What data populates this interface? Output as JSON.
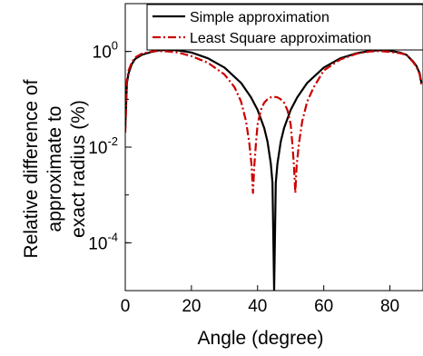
{
  "chart_data": {
    "type": "line",
    "xlabel": "Angle (degree)",
    "ylabel_lines": [
      "Relative difference of",
      "approximate to",
      "exact radius (%)"
    ],
    "xlim": [
      0,
      90
    ],
    "ylim": [
      1e-05,
      10
    ],
    "yscale": "log",
    "x_ticks": [
      0,
      20,
      40,
      60,
      80
    ],
    "x_tick_labels": [
      "0",
      "20",
      "40",
      "60",
      "80"
    ],
    "y_ticks": [
      0.0001,
      0.01,
      1
    ],
    "y_tick_labels": [
      {
        "base": "10",
        "exp": "-4"
      },
      {
        "base": "10",
        "exp": "-2"
      },
      {
        "base": "10",
        "exp": "0"
      }
    ],
    "grid": false,
    "legend": {
      "placement": "top-right",
      "entries": [
        {
          "label": "Simple approximation",
          "color": "#000000",
          "style": "solid"
        },
        {
          "label": "Least Square approximation",
          "color": "#cc0000",
          "style": "dashdot"
        }
      ]
    },
    "series": [
      {
        "name": "Simple approximation",
        "color": "#000000",
        "style": "solid",
        "x": [
          0,
          0.5,
          1,
          2,
          3,
          5,
          8,
          10,
          13,
          16,
          20,
          25,
          30,
          35,
          38,
          40,
          42,
          43,
          44,
          44.5,
          45,
          45.5,
          46,
          47,
          48,
          50,
          52,
          55,
          60,
          65,
          70,
          74,
          77,
          80,
          83,
          85,
          87,
          88,
          89,
          89.5
        ],
        "y": [
          0.025,
          0.22,
          0.35,
          0.55,
          0.7,
          0.85,
          0.98,
          1.05,
          1.08,
          1.05,
          0.95,
          0.72,
          0.46,
          0.22,
          0.11,
          0.06,
          0.025,
          0.013,
          0.0045,
          0.0018,
          1e-05,
          0.0018,
          0.0045,
          0.013,
          0.025,
          0.06,
          0.11,
          0.22,
          0.46,
          0.72,
          0.92,
          1.03,
          1.06,
          1.03,
          0.95,
          0.85,
          0.62,
          0.5,
          0.35,
          0.22
        ]
      },
      {
        "name": "Least Square approximation",
        "color": "#cc0000",
        "style": "dashdot",
        "x": [
          0,
          0.5,
          1,
          2,
          3,
          5,
          8,
          10,
          13,
          16,
          20,
          25,
          30,
          33,
          35,
          36.5,
          37.5,
          38.2,
          38.6,
          39,
          39.5,
          40,
          41,
          42,
          43,
          44,
          45,
          46,
          47,
          48,
          49,
          50,
          50.5,
          51,
          51.4,
          51.8,
          52.5,
          53.5,
          55,
          57,
          60,
          65,
          70,
          74,
          77,
          80,
          83,
          85,
          87,
          88,
          89,
          89.5
        ],
        "y": [
          0.02,
          0.25,
          0.4,
          0.6,
          0.75,
          0.9,
          1.0,
          1.02,
          1.0,
          0.95,
          0.8,
          0.58,
          0.33,
          0.18,
          0.09,
          0.035,
          0.012,
          0.004,
          0.0011,
          0.004,
          0.012,
          0.03,
          0.06,
          0.085,
          0.1,
          0.11,
          0.112,
          0.11,
          0.1,
          0.085,
          0.06,
          0.03,
          0.012,
          0.004,
          0.0011,
          0.004,
          0.012,
          0.035,
          0.09,
          0.18,
          0.4,
          0.68,
          0.9,
          1.0,
          1.02,
          0.98,
          0.92,
          0.85,
          0.6,
          0.48,
          0.33,
          0.2
        ]
      }
    ]
  }
}
